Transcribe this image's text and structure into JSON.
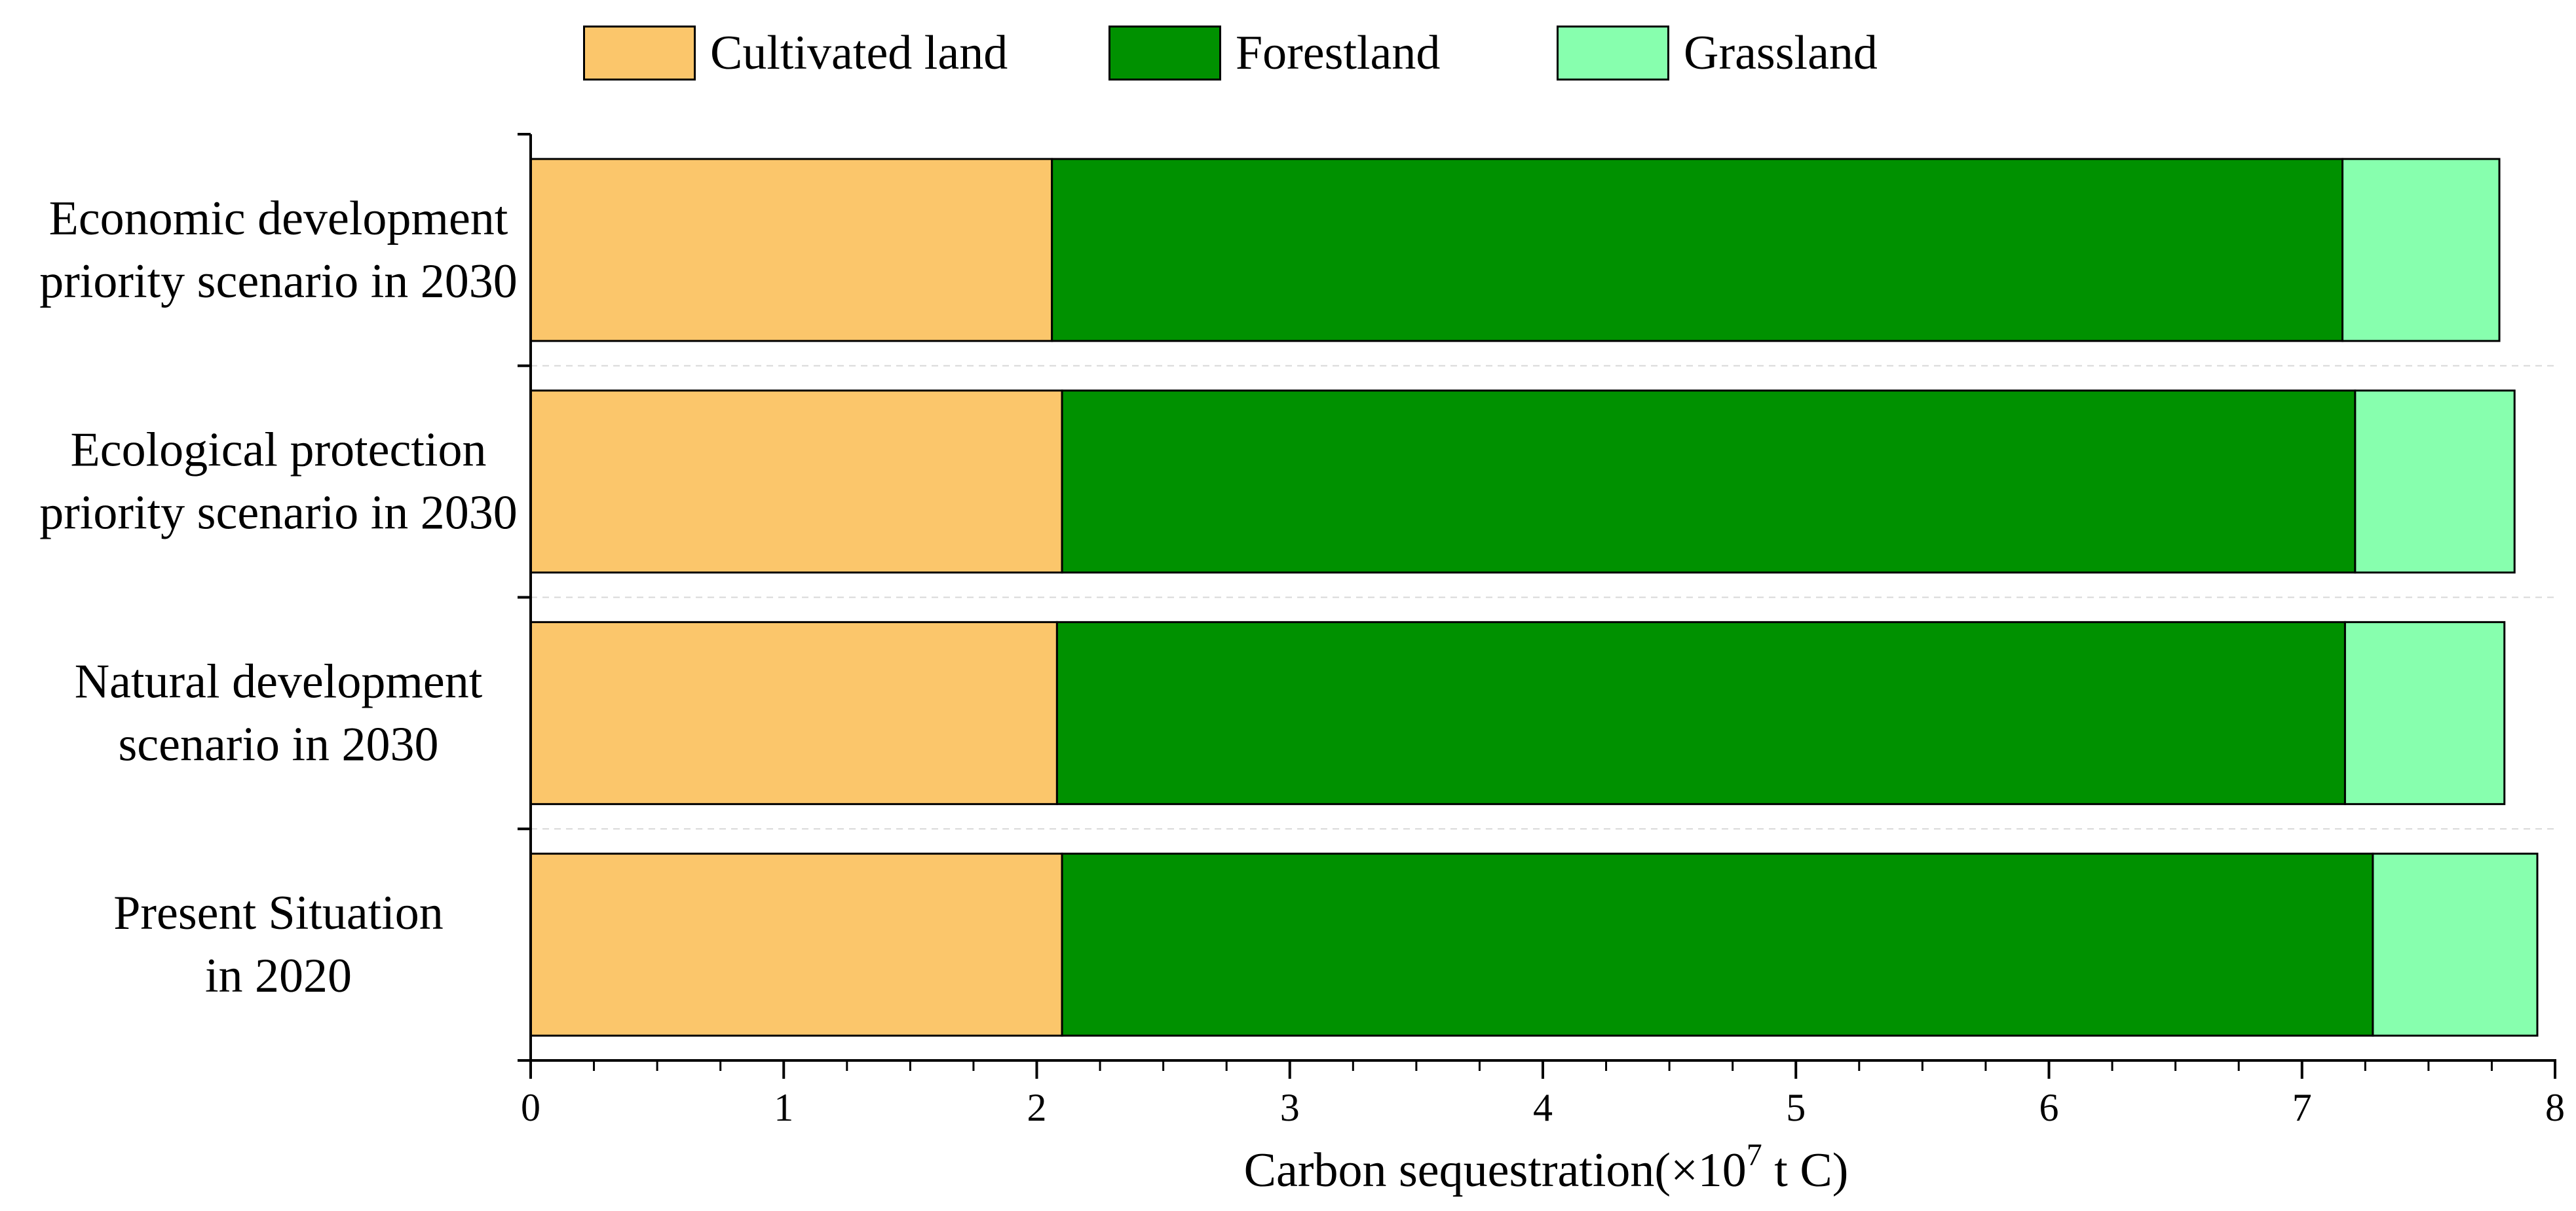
{
  "chart_data": {
    "type": "bar",
    "orientation": "horizontal",
    "stacked": true,
    "title": "",
    "xlabel_main": "Carbon sequestration(×10",
    "xlabel_sup": "7",
    "xlabel_tail": " t C)",
    "xlim": [
      0,
      8
    ],
    "xticks": [
      "0",
      "1",
      "2",
      "3",
      "4",
      "5",
      "6",
      "7",
      "8"
    ],
    "categories": [
      [
        "Economic development",
        "priority scenario in 2030"
      ],
      [
        "Ecological protection",
        "priority scenario in 2030"
      ],
      [
        "Natural development",
        "scenario in 2030"
      ],
      [
        "Present Situation",
        "in 2020"
      ]
    ],
    "series": [
      {
        "name": "Cultivated land",
        "color": "#FBC66B",
        "values": [
          2.06,
          2.1,
          2.08,
          2.1
        ]
      },
      {
        "name": "Forestland",
        "color": "#009100",
        "values": [
          5.1,
          5.11,
          5.09,
          5.18
        ]
      },
      {
        "name": "Grassland",
        "color": "#87FFAE",
        "values": [
          0.62,
          0.63,
          0.63,
          0.65
        ]
      }
    ],
    "legend_position": "top",
    "grid": false
  }
}
